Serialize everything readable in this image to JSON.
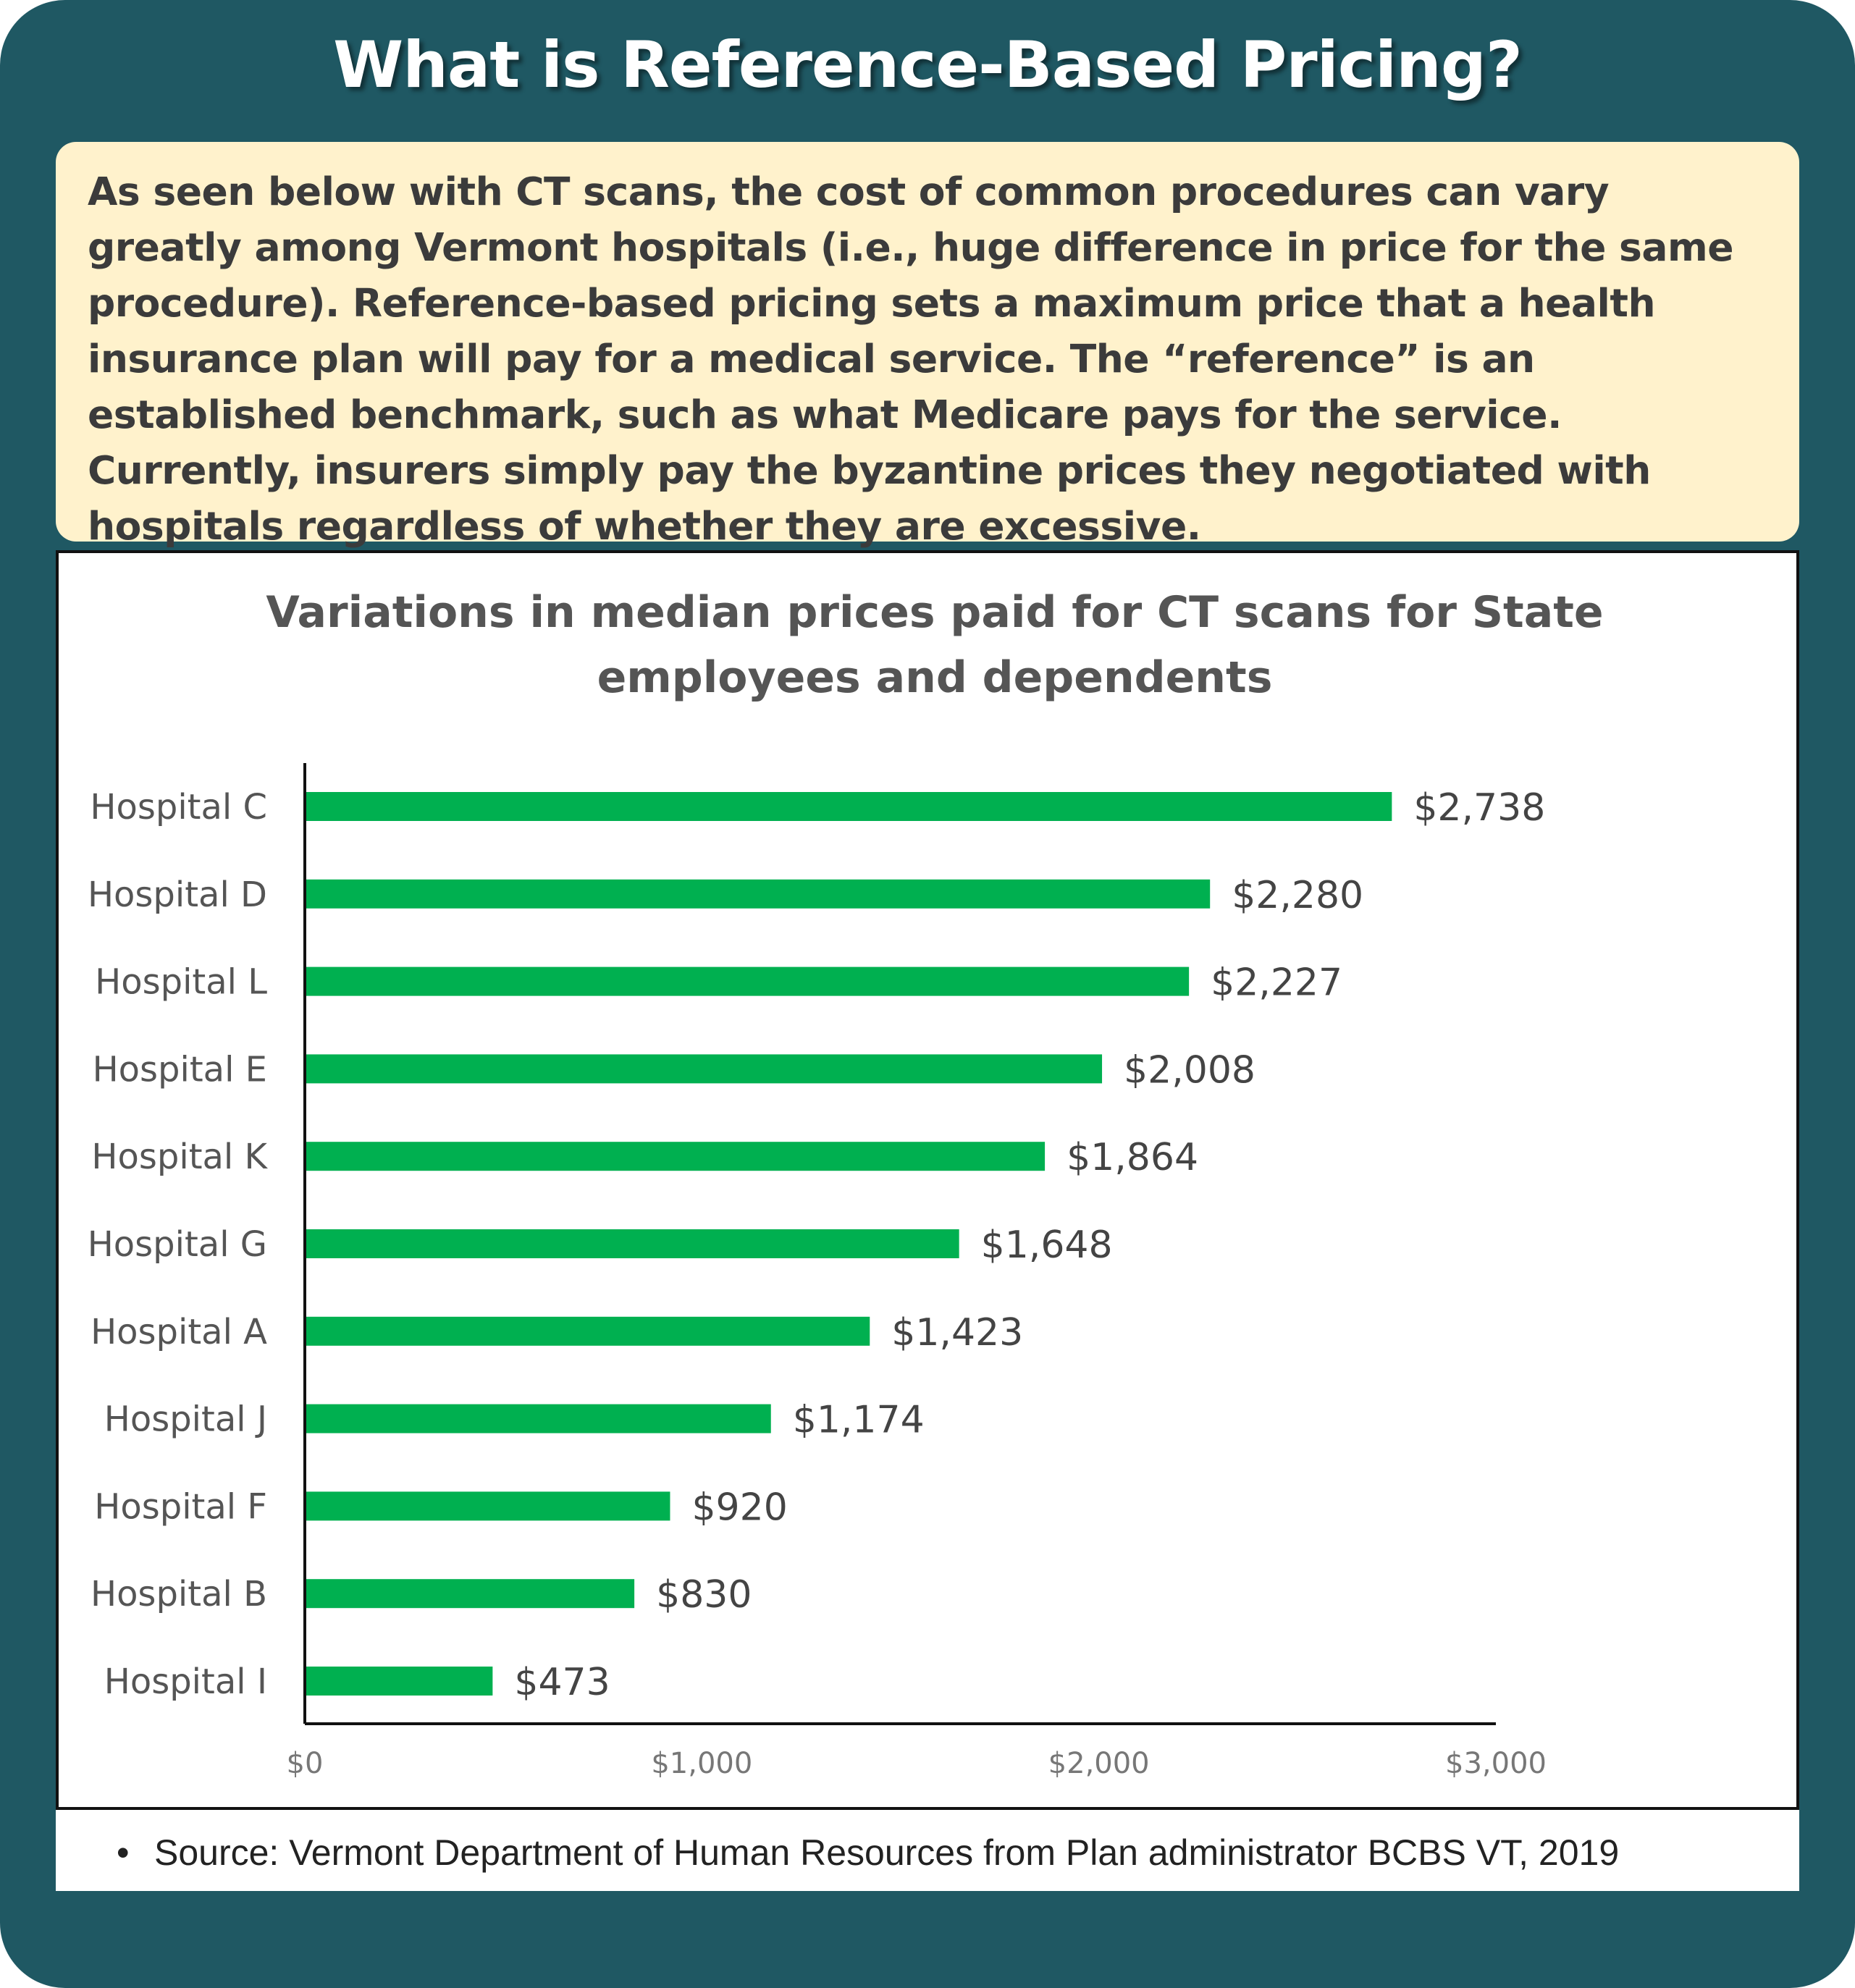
{
  "page": {
    "title": "What is Reference-Based Pricing?",
    "intro": "As seen below with CT scans, the cost of common procedures can vary greatly among Vermont hospitals (i.e., huge difference in price for the same procedure). Reference-based pricing sets a maximum price that a health insurance plan will pay for a medical service. The “reference” is an established benchmark, such as what Medicare pays for the service. Currently, insurers simply pay the byzantine prices they negotiated with hospitals regardless of whether they are excessive.",
    "source": "Source: Vermont Department of Human Resources from Plan administrator BCBS VT, 2019",
    "colors": {
      "frame": "#1f5863",
      "intro_bg": "#fff2cc",
      "bar": "#00b050"
    }
  },
  "chart_data": {
    "type": "bar",
    "orientation": "horizontal",
    "title": "Variations in median prices paid for CT scans for State employees and dependents",
    "title_lines": [
      "Variations in median prices paid for CT scans for State",
      "employees and dependents"
    ],
    "categories": [
      "Hospital C",
      "Hospital D",
      "Hospital L",
      "Hospital E",
      "Hospital K",
      "Hospital G",
      "Hospital A",
      "Hospital J",
      "Hospital F",
      "Hospital B",
      "Hospital I"
    ],
    "values": [
      2738,
      2280,
      2227,
      2008,
      1864,
      1648,
      1423,
      1174,
      920,
      830,
      473
    ],
    "data_labels": [
      "$2,738",
      "$2,280",
      "$2,227",
      "$2,008",
      "$1,864",
      "$1,648",
      "$1,423",
      "$1,174",
      "$920",
      "$830",
      "$473"
    ],
    "xlim": [
      0,
      3000
    ],
    "x_ticks": [
      0,
      1000,
      2000,
      3000
    ],
    "x_tick_labels": [
      "$0",
      "$1,000",
      "$2,000",
      "$3,000"
    ],
    "xlabel": "",
    "ylabel": "",
    "grid": false,
    "legend": "none"
  }
}
